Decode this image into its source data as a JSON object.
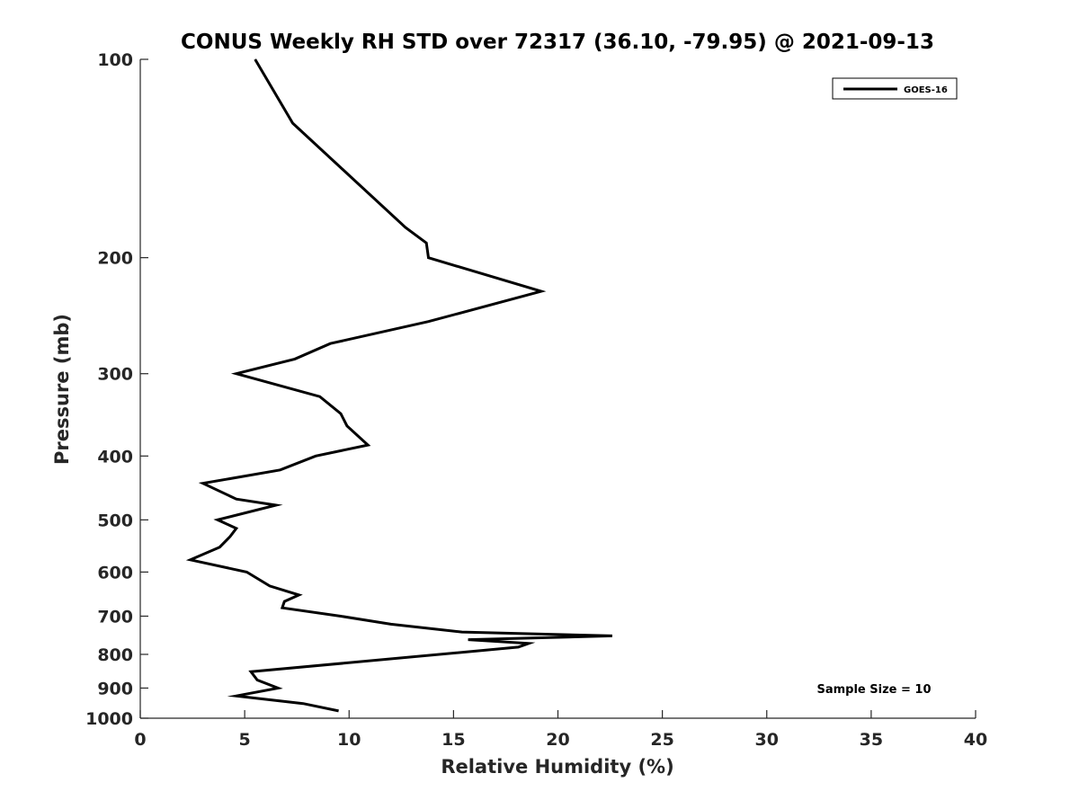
{
  "chart_data": {
    "type": "line",
    "title": "CONUS Weekly RH STD over 72317 (36.10, -79.95) @ 2021-09-13",
    "xlabel": "Relative Humidity (%)",
    "ylabel": "Pressure (mb)",
    "xlim": [
      0,
      40
    ],
    "ylim": [
      100,
      1000
    ],
    "y_scale": "log",
    "y_reversed": true,
    "grid": false,
    "legend_position": "top-right",
    "x_ticks": [
      "0",
      "5",
      "10",
      "15",
      "20",
      "25",
      "30",
      "35",
      "40"
    ],
    "y_ticks": [
      "100",
      "200",
      "300",
      "400",
      "500",
      "600",
      "700",
      "800",
      "900",
      "1000"
    ],
    "annotation": "Sample Size = 10",
    "series": [
      {
        "name": "GOES-16",
        "color": "#000000",
        "points": [
          [
            5.5,
            100
          ],
          [
            7.3,
            125
          ],
          [
            10.0,
            150
          ],
          [
            12.7,
            180
          ],
          [
            13.7,
            190
          ],
          [
            13.8,
            200
          ],
          [
            19.2,
            225
          ],
          [
            13.8,
            250
          ],
          [
            9.1,
            270
          ],
          [
            7.4,
            285
          ],
          [
            4.6,
            300
          ],
          [
            8.6,
            325
          ],
          [
            9.6,
            345
          ],
          [
            9.9,
            360
          ],
          [
            10.9,
            385
          ],
          [
            8.4,
            400
          ],
          [
            6.7,
            420
          ],
          [
            3.0,
            440
          ],
          [
            4.6,
            465
          ],
          [
            6.5,
            475
          ],
          [
            3.7,
            500
          ],
          [
            4.6,
            515
          ],
          [
            4.3,
            530
          ],
          [
            3.8,
            550
          ],
          [
            2.4,
            575
          ],
          [
            5.1,
            600
          ],
          [
            6.2,
            630
          ],
          [
            7.6,
            650
          ],
          [
            6.9,
            665
          ],
          [
            6.8,
            680
          ],
          [
            9.6,
            700
          ],
          [
            12.0,
            720
          ],
          [
            15.4,
            740
          ],
          [
            22.6,
            750
          ],
          [
            15.7,
            760
          ],
          [
            18.6,
            770
          ],
          [
            18.1,
            780
          ],
          [
            5.3,
            850
          ],
          [
            5.6,
            875
          ],
          [
            6.6,
            900
          ],
          [
            4.6,
            925
          ],
          [
            7.8,
            950
          ],
          [
            9.5,
            975
          ]
        ]
      }
    ]
  }
}
